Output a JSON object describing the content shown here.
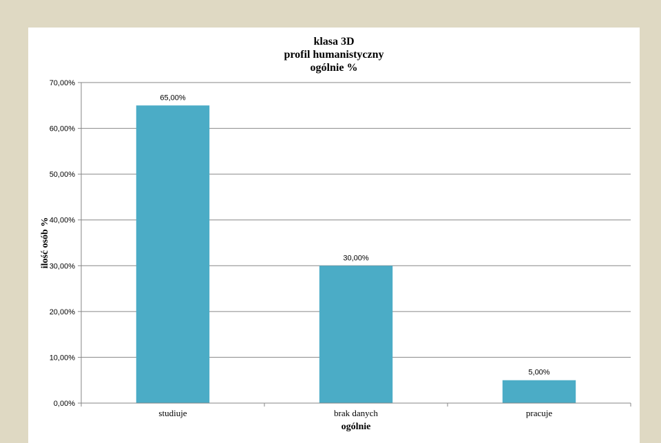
{
  "chart_data": {
    "type": "bar",
    "title_lines": [
      "klasa 3D",
      "profil humanistyczny",
      "ogólnie %"
    ],
    "xlabel": "ogólnie",
    "ylabel": "ilość osób %",
    "categories": [
      "studiuje",
      "brak danych",
      "pracuje"
    ],
    "values": [
      65,
      30,
      5
    ],
    "value_labels": [
      "65,00%",
      "30,00%",
      "5,00%"
    ],
    "ylim": [
      0,
      70
    ],
    "yticks": [
      0,
      10,
      20,
      30,
      40,
      50,
      60,
      70
    ],
    "ytick_labels": [
      "0,00%",
      "10,00%",
      "20,00%",
      "30,00%",
      "40,00%",
      "50,00%",
      "60,00%",
      "70,00%"
    ],
    "grid": true,
    "legend": "none",
    "bar_color": "#4bacc6"
  }
}
